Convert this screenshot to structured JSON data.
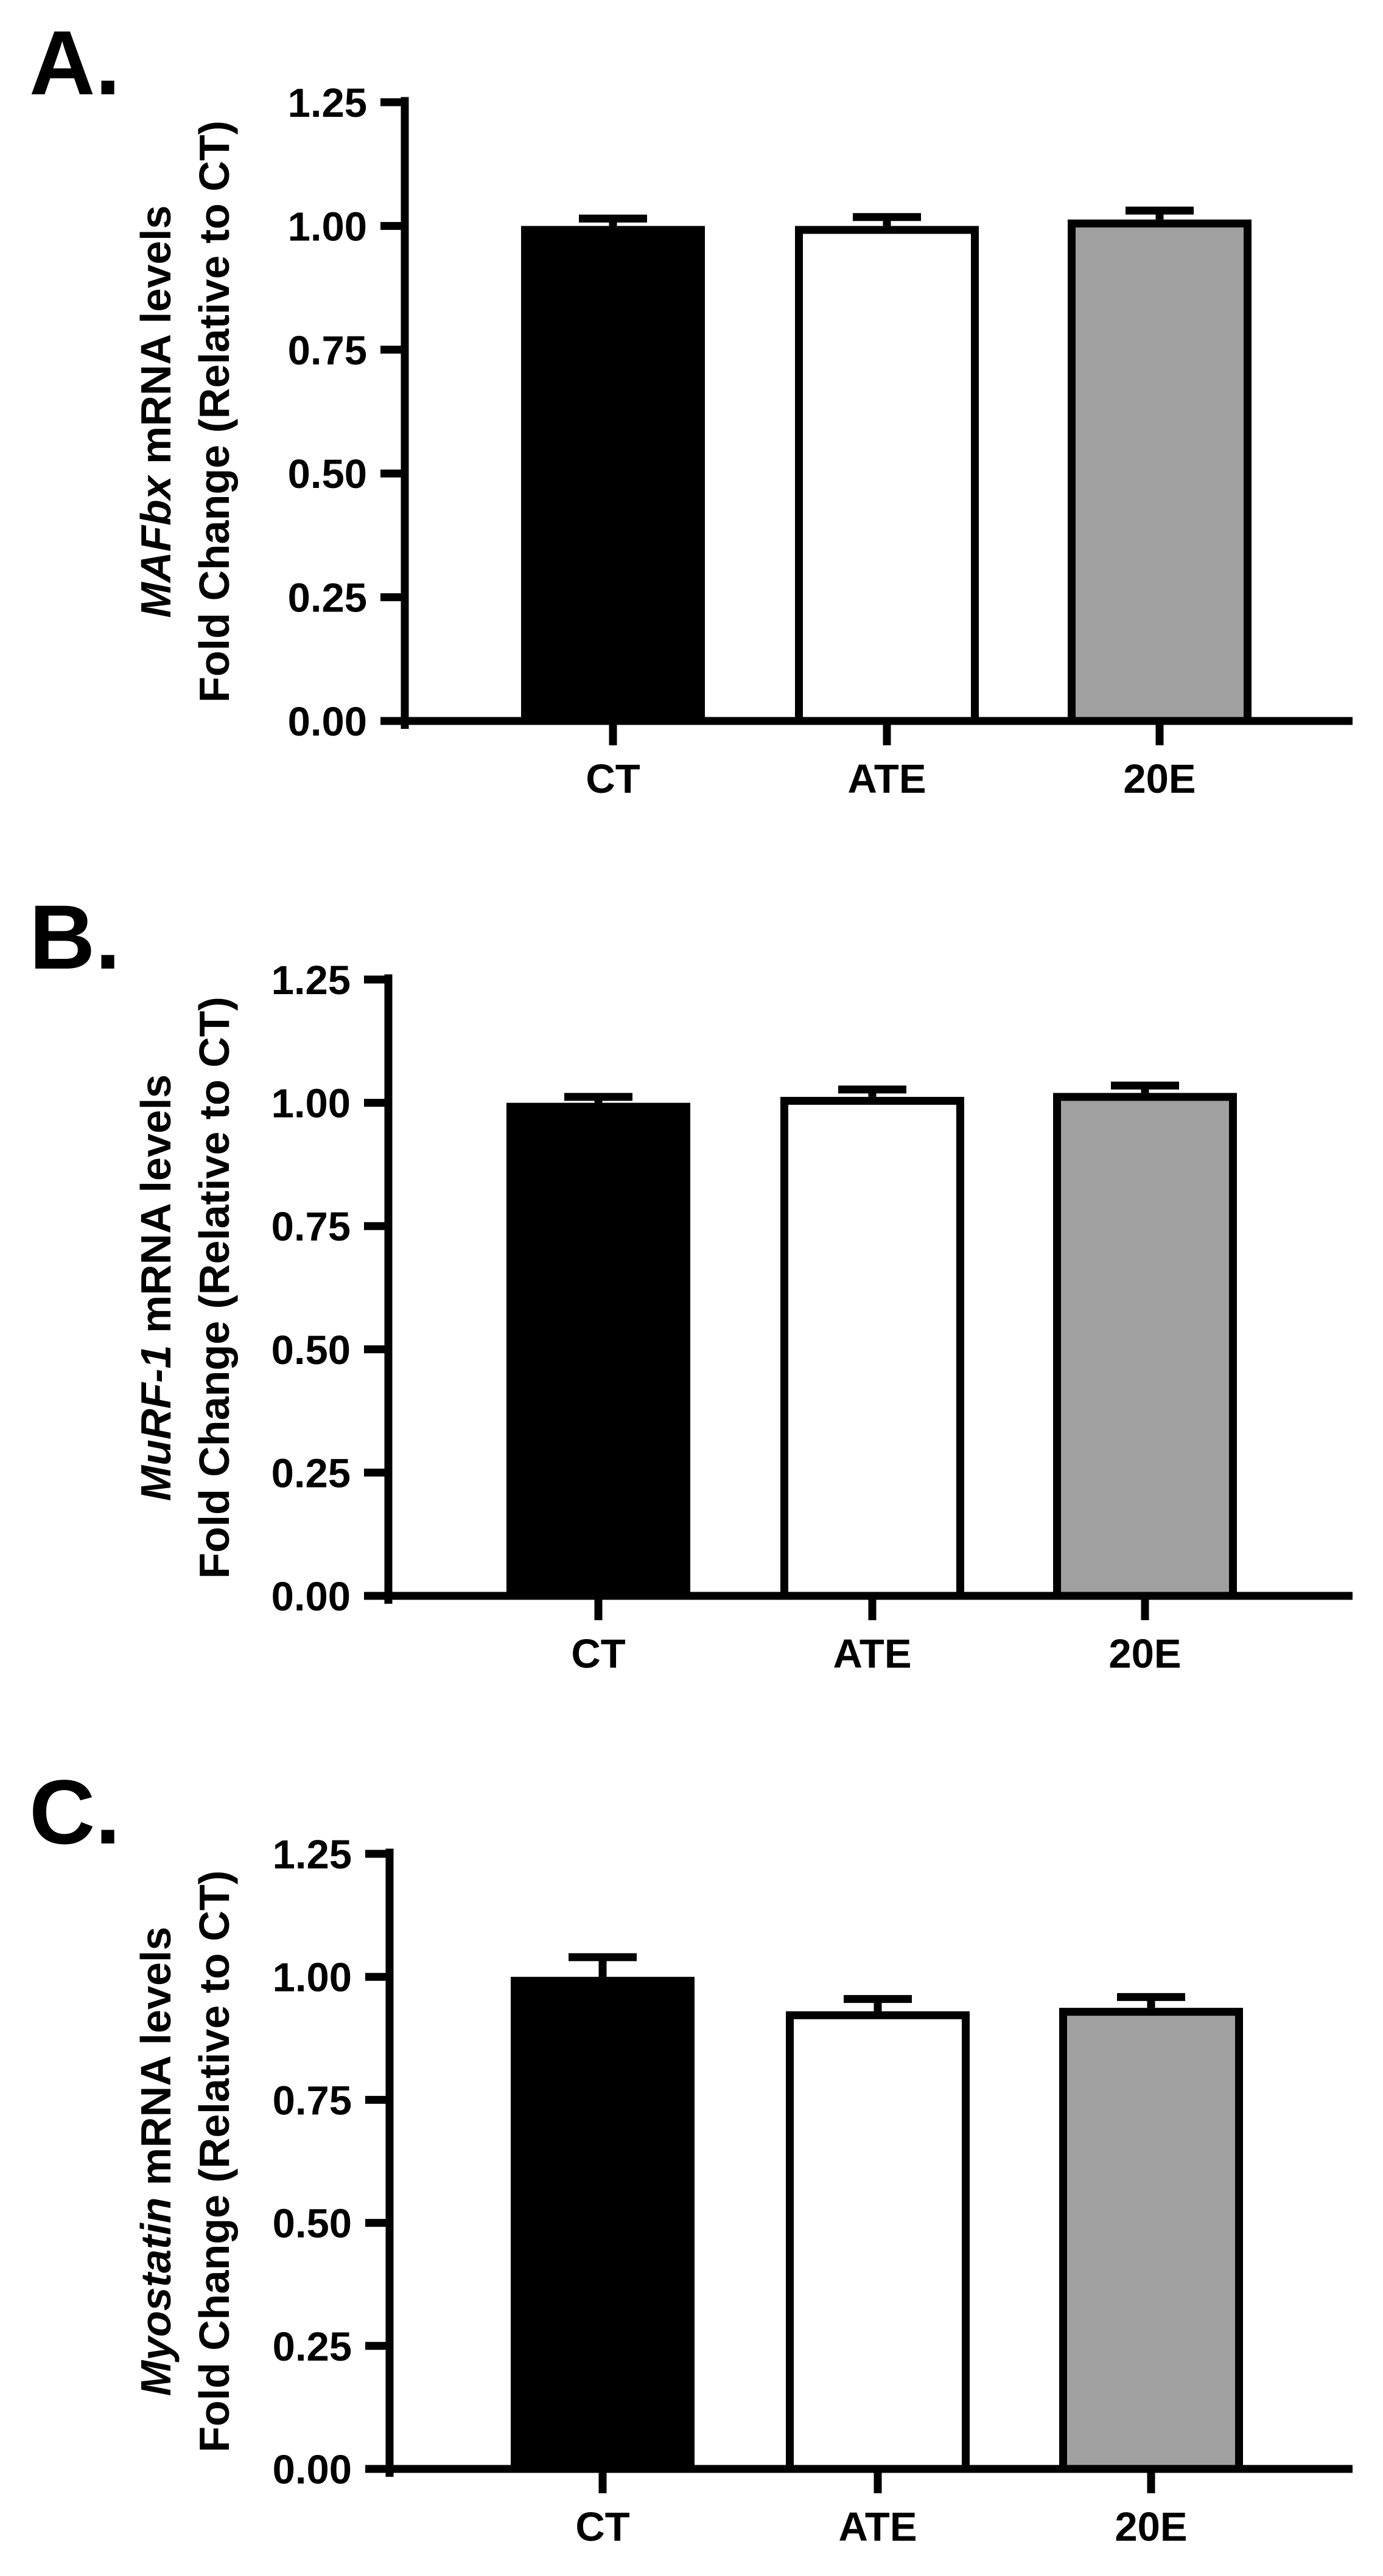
{
  "chart_data": [
    {
      "type": "bar",
      "panel_label": "A.",
      "categories": [
        "CT",
        "ATE",
        "20E"
      ],
      "values": [
        1.0,
        1.0,
        1.013
      ],
      "errors": [
        0.015,
        0.018,
        0.018
      ],
      "ylabel_italic": "MAFbx",
      "ylabel_rest": " mRNA levels",
      "ylabel_line2": "Fold Change (Relative to CT)",
      "ylim": [
        0,
        1.25
      ],
      "yticks": [
        "0.00",
        "0.25",
        "0.50",
        "0.75",
        "1.00",
        "1.25"
      ],
      "grid": false
    },
    {
      "type": "bar",
      "panel_label": "B.",
      "categories": [
        "CT",
        "ATE",
        "20E"
      ],
      "values": [
        1.0,
        1.012,
        1.02
      ],
      "errors": [
        0.012,
        0.015,
        0.015
      ],
      "ylabel_italic": "MuRF-1",
      "ylabel_rest": " mRNA levels",
      "ylabel_line2": "Fold Change (Relative to CT)",
      "ylim": [
        0,
        1.25
      ],
      "yticks": [
        "0.00",
        "0.25",
        "0.50",
        "0.75",
        "1.00",
        "1.25"
      ],
      "grid": false
    },
    {
      "type": "bar",
      "panel_label": "C.",
      "categories": [
        "CT",
        "ATE",
        "20E"
      ],
      "values": [
        1.0,
        0.93,
        0.937
      ],
      "errors": [
        0.04,
        0.025,
        0.022
      ],
      "ylabel_italic": "Myostatin",
      "ylabel_rest": " mRNA levels",
      "ylabel_line2": "Fold Change (Relative to CT)",
      "ylim": [
        0,
        1.25
      ],
      "yticks": [
        "0.00",
        "0.25",
        "0.50",
        "0.75",
        "1.00",
        "1.25"
      ],
      "grid": false
    }
  ],
  "colors": {
    "bar_fills": [
      "#000000",
      "#ffffff",
      "#a0a0a0"
    ],
    "stroke": "#000000"
  }
}
